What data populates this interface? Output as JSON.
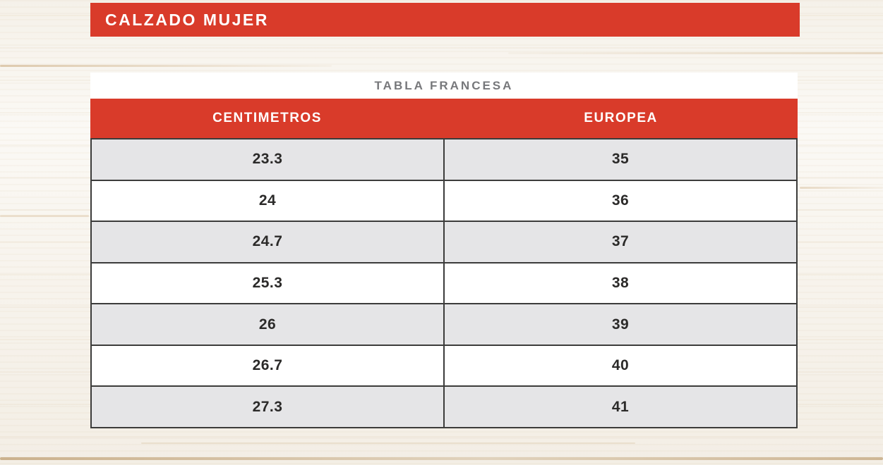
{
  "section": {
    "title": "CALZADO MUJER"
  },
  "table": {
    "title": "TABLA FRANCESA",
    "columns": [
      "CENTIMETROS",
      "EUROPEA"
    ],
    "rows": [
      {
        "cm": "23.3",
        "eu": "35"
      },
      {
        "cm": "24",
        "eu": "36"
      },
      {
        "cm": "24.7",
        "eu": "37"
      },
      {
        "cm": "25.3",
        "eu": "38"
      },
      {
        "cm": "26",
        "eu": "39"
      },
      {
        "cm": "26.7",
        "eu": "40"
      },
      {
        "cm": "27.3",
        "eu": "41"
      }
    ]
  },
  "colors": {
    "accent_red": "#D93B2A",
    "row_gray": "#E5E5E7",
    "muted_gray": "#77787B",
    "line_dark": "#3C3C3B",
    "ink": "#2B2A29",
    "wood_base": "#F8F5EF"
  },
  "chart_data": {
    "type": "table",
    "section_title": "CALZADO MUJER",
    "title": "TABLA FRANCESA",
    "columns": [
      "CENTIMETROS",
      "EUROPEA"
    ],
    "rows": [
      [
        "23.3",
        "35"
      ],
      [
        "24",
        "36"
      ],
      [
        "24.7",
        "37"
      ],
      [
        "25.3",
        "38"
      ],
      [
        "26",
        "39"
      ],
      [
        "26.7",
        "40"
      ],
      [
        "27.3",
        "41"
      ]
    ]
  }
}
